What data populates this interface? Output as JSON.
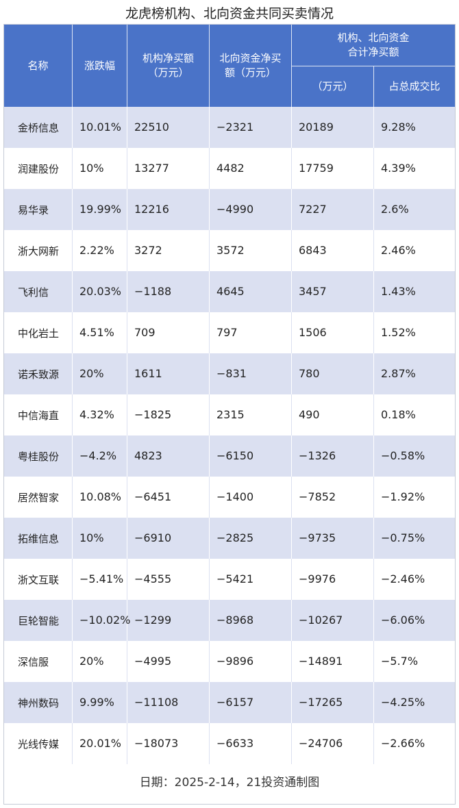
{
  "title": "龙虎榜机构、北向资金共同买卖情况",
  "headers": {
    "name": "名称",
    "change": "涨跌幅",
    "inst_net_line1": "机构净买额",
    "inst_net_line2": "（万元）",
    "north_net_line1": "北向资金净买",
    "north_net_line2": "额（万元）",
    "combined_line1": "机构、北向资金",
    "combined_line2": "合计净买额",
    "combined_unit": "（万元）",
    "ratio": "占总成交比"
  },
  "rows": [
    {
      "name": "金桥信息",
      "change": "10.01%",
      "inst": "22510",
      "north": "−2321",
      "total": "20189",
      "ratio": "9.28%"
    },
    {
      "name": "润建股份",
      "change": "10%",
      "inst": "13277",
      "north": "4482",
      "total": "17759",
      "ratio": "4.39%"
    },
    {
      "name": "易华录",
      "change": "19.99%",
      "inst": "12216",
      "north": "−4990",
      "total": "7227",
      "ratio": "2.6%"
    },
    {
      "name": "浙大网新",
      "change": "2.22%",
      "inst": "3272",
      "north": "3572",
      "total": "6843",
      "ratio": "2.46%"
    },
    {
      "name": "飞利信",
      "change": "20.03%",
      "inst": "−1188",
      "north": "4645",
      "total": "3457",
      "ratio": "1.43%"
    },
    {
      "name": "中化岩土",
      "change": "4.51%",
      "inst": "709",
      "north": "797",
      "total": "1506",
      "ratio": "1.52%"
    },
    {
      "name": "诺禾致源",
      "change": "20%",
      "inst": "1611",
      "north": "−831",
      "total": "780",
      "ratio": "2.87%"
    },
    {
      "name": "中信海直",
      "change": "4.32%",
      "inst": "−1825",
      "north": "2315",
      "total": "490",
      "ratio": "0.18%"
    },
    {
      "name": "粤桂股份",
      "change": "−4.2%",
      "inst": "4823",
      "north": "−6150",
      "total": "−1326",
      "ratio": "−0.58%"
    },
    {
      "name": "居然智家",
      "change": "10.08%",
      "inst": "−6451",
      "north": "−1400",
      "total": "−7852",
      "ratio": "−1.92%"
    },
    {
      "name": "拓维信息",
      "change": "10%",
      "inst": "−6910",
      "north": "−2825",
      "total": "−9735",
      "ratio": "−0.75%"
    },
    {
      "name": "浙文互联",
      "change": "−5.41%",
      "inst": "−4555",
      "north": "−5421",
      "total": "−9976",
      "ratio": "−2.46%"
    },
    {
      "name": "巨轮智能",
      "change": "−10.02%",
      "inst": "−1299",
      "north": "−8968",
      "total": "−10267",
      "ratio": "−6.06%"
    },
    {
      "name": "深信服",
      "change": "20%",
      "inst": "−4995",
      "north": "−9896",
      "total": "−14891",
      "ratio": "−5.7%"
    },
    {
      "name": "神州数码",
      "change": "9.99%",
      "inst": "−11108",
      "north": "−6157",
      "total": "−17265",
      "ratio": "−4.25%"
    },
    {
      "name": "光线传媒",
      "change": "20.01%",
      "inst": "−18073",
      "north": "−6633",
      "total": "−24706",
      "ratio": "−2.66%"
    }
  ],
  "footer": "日期：2025-2-14，21投资通制图",
  "colors": {
    "header_bg": "#4a73c8",
    "stripe_bg": "#dbe0f1",
    "text": "#222222"
  }
}
